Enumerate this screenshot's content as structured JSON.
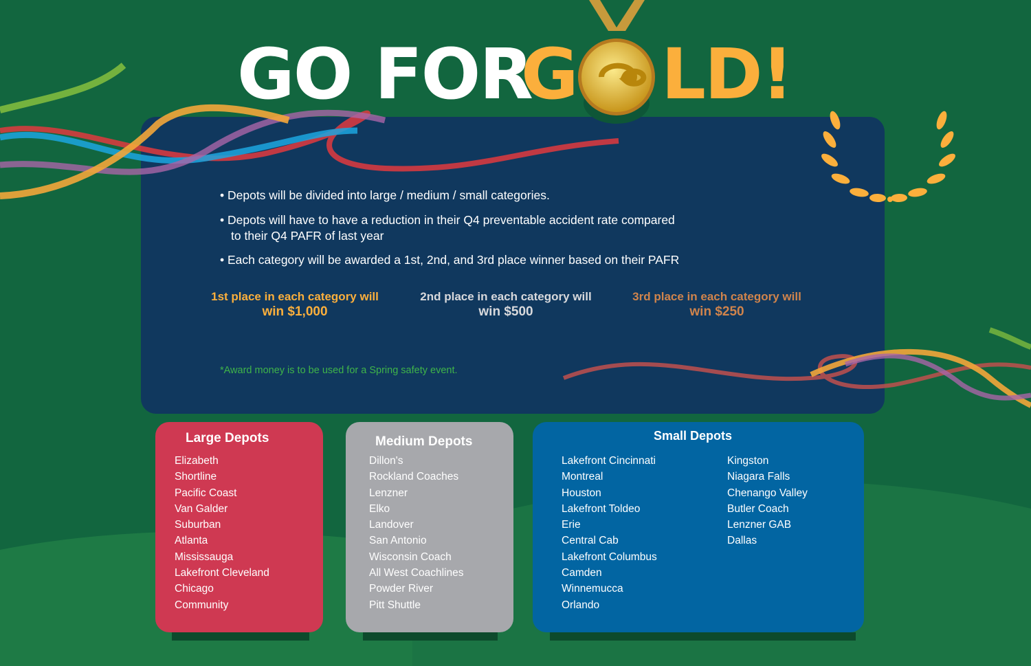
{
  "title": {
    "part1": "GO FOR",
    "part2": "G",
    "part3": "LD!"
  },
  "colors": {
    "background": "#12663f",
    "panel": "#10385e",
    "gold": "#fbaf3c",
    "silver": "#d8d9dc",
    "bronze": "#d0844c",
    "note": "#3fb449",
    "large": "#cf3952",
    "medium": "#a7a8ac",
    "small": "#0265a2"
  },
  "icons": [
    "gold-medal-icon",
    "laurel-wreath-icon",
    "ribbon-decoration"
  ],
  "bullets": [
    "• Depots will be divided into large / medium / small categories.",
    "• Depots will have to have a reduction in their Q4 preventable accident rate compared",
    "to their Q4 PAFR of last year",
    "• Each category will be awarded a 1st, 2nd, and 3rd place winner based on their PAFR"
  ],
  "prizes": [
    {
      "line": "1st place in each category will",
      "amount": "win $1,000"
    },
    {
      "line": "2nd place in each category will",
      "amount": "win $500"
    },
    {
      "line": "3rd place in each category will",
      "amount": "win $250"
    }
  ],
  "note": "*Award money is to be used for a Spring safety event.",
  "large": {
    "title": "Large Depots",
    "items": [
      "Elizabeth",
      "Shortline",
      "Pacific Coast",
      "Van Galder",
      "Suburban",
      "Atlanta",
      "Mississauga",
      "Lakefront Cleveland",
      "Chicago",
      "Community"
    ]
  },
  "medium": {
    "title": "Medium Depots",
    "items": [
      "Dillon's",
      "Rockland Coaches",
      "Lenzner",
      "Elko",
      "Landover",
      "San Antonio",
      "Wisconsin Coach",
      "All West Coachlines",
      "Powder River",
      "Pitt Shuttle"
    ]
  },
  "small": {
    "title": "Small Depots",
    "col1": [
      "Lakefront Cincinnati",
      "Montreal",
      "Houston",
      "Lakefront Toldeo",
      "Erie",
      "Central Cab",
      "Lakefront Columbus",
      "Camden",
      "Winnemucca",
      "Orlando"
    ],
    "col2": [
      "Kingston",
      "Niagara Falls",
      "Chenango Valley",
      "Butler Coach",
      "Lenzner GAB",
      "Dallas"
    ]
  }
}
